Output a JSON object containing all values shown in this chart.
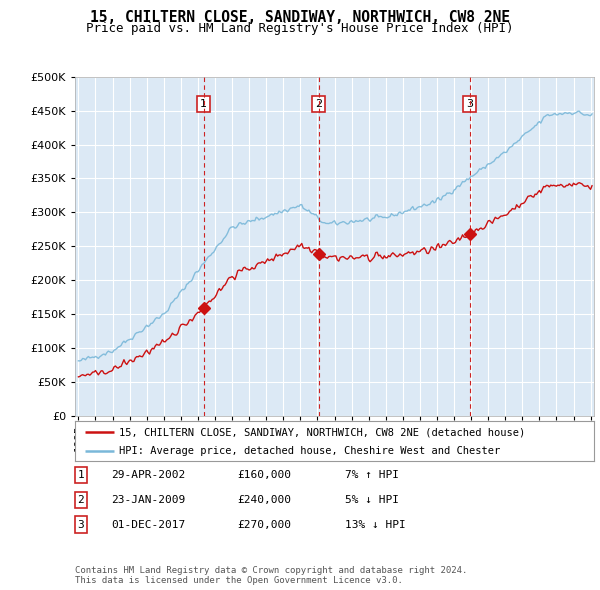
{
  "title": "15, CHILTERN CLOSE, SANDIWAY, NORTHWICH, CW8 2NE",
  "subtitle": "Price paid vs. HM Land Registry's House Price Index (HPI)",
  "title_fontsize": 10.5,
  "subtitle_fontsize": 9,
  "hpi_color": "#7ab8d9",
  "price_color": "#cc1111",
  "vline_color": "#cc2222",
  "background_color": "#dce9f5",
  "grid_color": "#ffffff",
  "ylim": [
    0,
    500000
  ],
  "yticks": [
    0,
    50000,
    100000,
    150000,
    200000,
    250000,
    300000,
    350000,
    400000,
    450000,
    500000
  ],
  "xlim_start": 1995,
  "xlim_end": 2025,
  "sales": [
    {
      "date": 2002.33,
      "price": 160000,
      "label": "1"
    },
    {
      "date": 2009.07,
      "price": 240000,
      "label": "2"
    },
    {
      "date": 2017.92,
      "price": 270000,
      "label": "3"
    }
  ],
  "legend_entries": [
    "15, CHILTERN CLOSE, SANDIWAY, NORTHWICH, CW8 2NE (detached house)",
    "HPI: Average price, detached house, Cheshire West and Chester"
  ],
  "table_rows": [
    {
      "num": "1",
      "date": "29-APR-2002",
      "price": "£160,000",
      "hpi": "7% ↑ HPI"
    },
    {
      "num": "2",
      "date": "23-JAN-2009",
      "price": "£240,000",
      "hpi": "5% ↓ HPI"
    },
    {
      "num": "3",
      "date": "01-DEC-2017",
      "price": "£270,000",
      "hpi": "13% ↓ HPI"
    }
  ],
  "footnote": "Contains HM Land Registry data © Crown copyright and database right 2024.\nThis data is licensed under the Open Government Licence v3.0."
}
